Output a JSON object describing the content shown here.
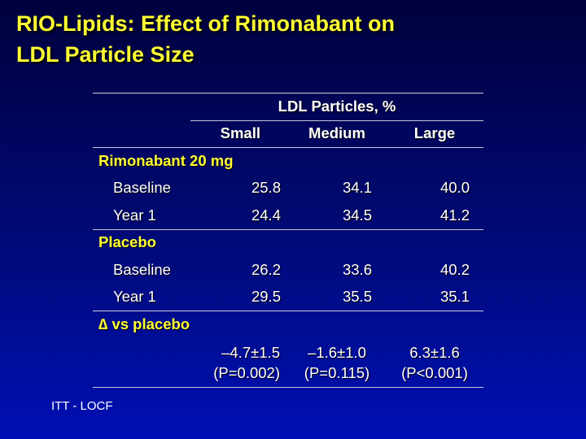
{
  "title": {
    "line1": "RIO-Lipids: Effect of Rimonabant on",
    "line2": "LDL Particle Size"
  },
  "table": {
    "super_header": "LDL Particles, %",
    "columns": [
      "Small",
      "Medium",
      "Large"
    ],
    "groups": [
      {
        "label": "Rimonabant 20 mg",
        "rows": [
          {
            "label": "Baseline",
            "values": [
              "25.8",
              "34.1",
              "40.0"
            ]
          },
          {
            "label": "Year 1",
            "values": [
              "24.4",
              "34.5",
              "41.2"
            ]
          }
        ]
      },
      {
        "label": "Placebo",
        "rows": [
          {
            "label": "Baseline",
            "values": [
              "26.2",
              "33.6",
              "40.2"
            ]
          },
          {
            "label": "Year 1",
            "values": [
              "29.5",
              "35.5",
              "35.1"
            ]
          }
        ]
      }
    ],
    "delta": {
      "label": "∆ vs placebo",
      "values": [
        "–4.7±1.5",
        "–1.6±1.0",
        "6.3±1.6"
      ],
      "pvalues": [
        "(P=0.002)",
        "(P=0.115)",
        "(P<0.001)"
      ]
    }
  },
  "footer": "ITT - LOCF"
}
